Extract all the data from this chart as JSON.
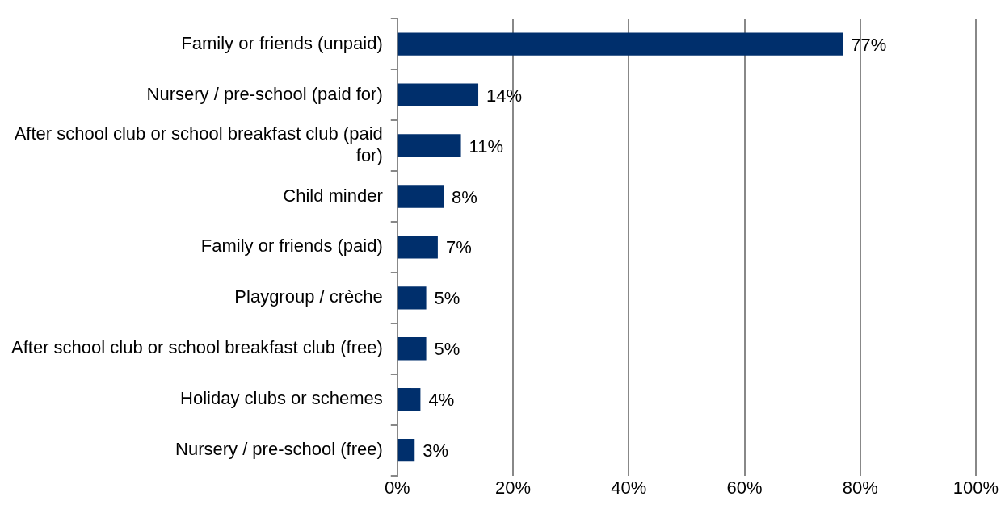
{
  "chart_data": {
    "type": "bar",
    "orientation": "horizontal",
    "categories": [
      "Family or friends (unpaid)",
      "Nursery / pre-school (paid for)",
      "After school club or school breakfast club (paid for)",
      "Child minder",
      "Family or friends (paid)",
      "Playgroup / crèche",
      "After school club or school breakfast club (free)",
      "Holiday clubs or schemes",
      "Nursery / pre-school (free)"
    ],
    "values": [
      77,
      14,
      11,
      8,
      7,
      5,
      5,
      4,
      3
    ],
    "value_labels": [
      "77%",
      "14%",
      "11%",
      "8%",
      "7%",
      "5%",
      "5%",
      "4%",
      "3%"
    ],
    "color": "#002f6c",
    "xlim": [
      0,
      100
    ],
    "xticks": [
      {
        "value": 0,
        "label": "0%"
      },
      {
        "value": 20,
        "label": "20%"
      },
      {
        "value": 40,
        "label": "40%"
      },
      {
        "value": 60,
        "label": "60%"
      },
      {
        "value": 80,
        "label": "80%"
      },
      {
        "value": 100,
        "label": "100%"
      }
    ],
    "grid": "x",
    "legend": false
  }
}
